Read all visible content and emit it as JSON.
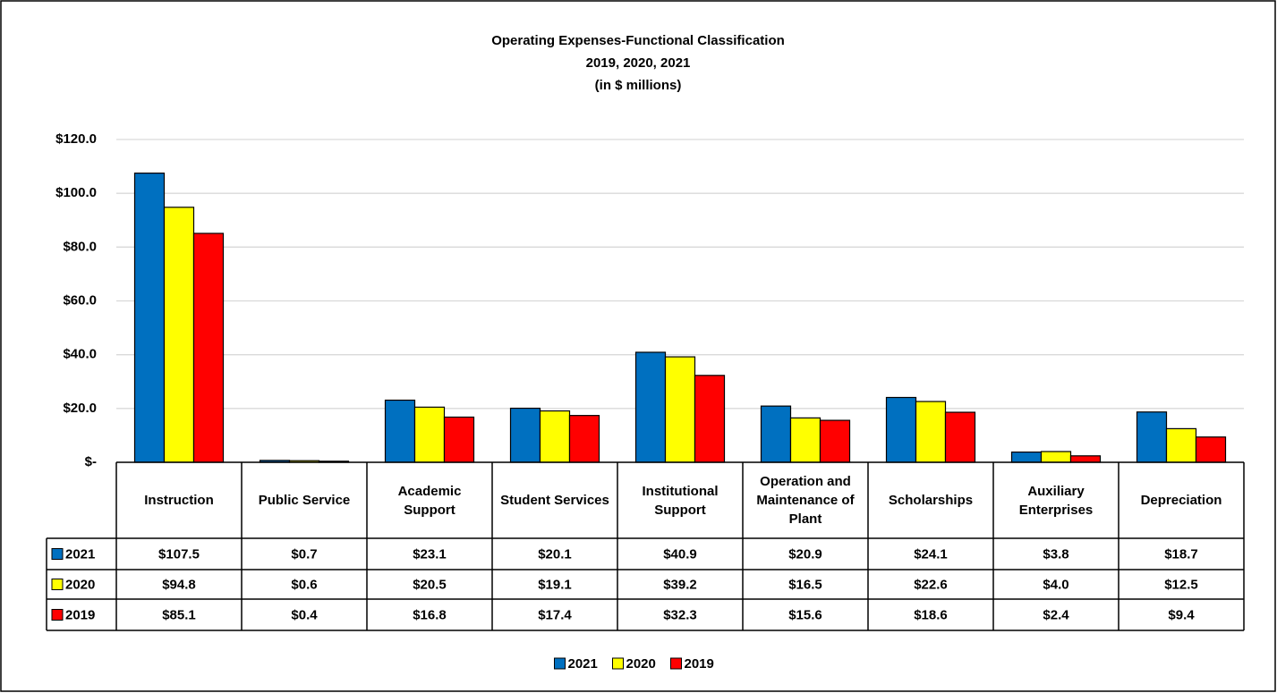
{
  "chart_data": {
    "type": "bar",
    "title": [
      "Operating Expenses-Functional Classification",
      "2019, 2020, 2021",
      "(in $ millions)"
    ],
    "categories": [
      "Instruction",
      "Public Service",
      "Academic Support",
      "Student Services",
      "Institutional Support",
      "Operation and Maintenance of Plant",
      "Scholarships",
      "Auxiliary Enterprises",
      "Depreciation"
    ],
    "series": [
      {
        "name": "2021",
        "color": "#0070c0",
        "values": [
          107.5,
          0.7,
          23.1,
          20.1,
          40.9,
          20.9,
          24.1,
          3.8,
          18.7
        ],
        "value_labels": [
          "$107.5",
          "$0.7",
          "$23.1",
          "$20.1",
          "$40.9",
          "$20.9",
          "$24.1",
          "$3.8",
          "$18.7"
        ]
      },
      {
        "name": "2020",
        "color": "#ffff00",
        "values": [
          94.8,
          0.6,
          20.5,
          19.1,
          39.2,
          16.5,
          22.6,
          4.0,
          12.5
        ],
        "value_labels": [
          "$94.8",
          "$0.6",
          "$20.5",
          "$19.1",
          "$39.2",
          "$16.5",
          "$22.6",
          "$4.0",
          "$12.5"
        ]
      },
      {
        "name": "2019",
        "color": "#ff0000",
        "values": [
          85.1,
          0.4,
          16.8,
          17.4,
          32.3,
          15.6,
          18.6,
          2.4,
          9.4
        ],
        "value_labels": [
          "$85.1",
          "$0.4",
          "$16.8",
          "$17.4",
          "$32.3",
          "$15.6",
          "$18.6",
          "$2.4",
          "$9.4"
        ]
      }
    ],
    "ylim": [
      0,
      120
    ],
    "yticks": [
      {
        "value": 0,
        "label": "$-"
      },
      {
        "value": 20,
        "label": "$20.0"
      },
      {
        "value": 40,
        "label": "$40.0"
      },
      {
        "value": 60,
        "label": "$60.0"
      },
      {
        "value": 80,
        "label": "$80.0"
      },
      {
        "value": 100,
        "label": "$100.0"
      },
      {
        "value": 120,
        "label": "$120.0"
      }
    ],
    "grid": true,
    "legend": "bottom"
  }
}
